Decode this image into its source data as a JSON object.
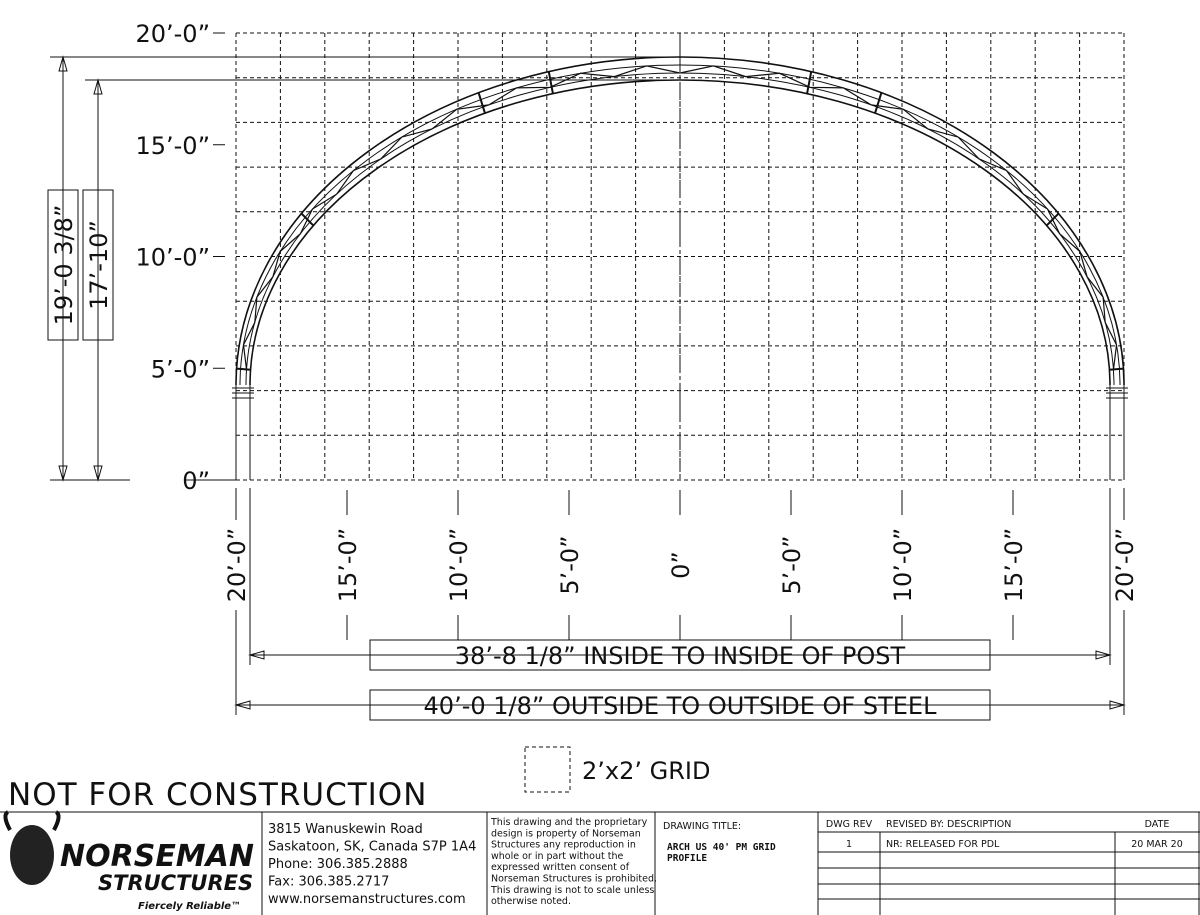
{
  "drawing": {
    "y_labels": [
      "20’-0”",
      "15’-0”",
      "10’-0”",
      "5’-0”",
      "0”"
    ],
    "x_labels": [
      "20’-0”",
      "15’-0”",
      "10’-0”",
      "5’-0”",
      "0”",
      "5’-0”",
      "10’-0”",
      "15’-0”",
      "20’-0”"
    ],
    "outer_height": "19’-0 3/8”",
    "inner_height": "17’-10”",
    "inside_width": "38’-8 1/8” INSIDE TO INSIDE OF POST",
    "outside_width": "40’-0 1/8” OUTSIDE TO OUTSIDE OF STEEL",
    "grid_legend": "2’x2’ GRID",
    "warning": "NOT FOR CONSTRUCTION"
  },
  "title_block": {
    "logo": {
      "name": "NORSEMAN",
      "sub": "STRUCTURES",
      "tagline": "Fiercely Reliable™"
    },
    "address": [
      "3815 Wanuskewin Road",
      "Saskatoon, SK, Canada S7P 1A4",
      "Phone: 306.385.2888",
      "Fax: 306.385.2717",
      "www.norsemanstructures.com"
    ],
    "disclaimer": [
      "This drawing and the proprietary",
      "design is property of Norseman",
      "Structures any reproduction in",
      "whole or in part without the",
      "expressed written consent of",
      "Norseman Structures is prohibited.",
      "This drawing is not to scale unless",
      "otherwise noted."
    ],
    "drawing_title_label": "DRAWING TITLE:",
    "drawing_title": [
      "ARCH US 40' PM GRID",
      "PROFILE"
    ],
    "revisions": {
      "headers": [
        "DWG REV",
        "REVISED BY: DESCRIPTION",
        "DATE"
      ],
      "rows": [
        [
          "1",
          "NR: RELEASED FOR PDL",
          "20 MAR 20"
        ]
      ]
    }
  }
}
